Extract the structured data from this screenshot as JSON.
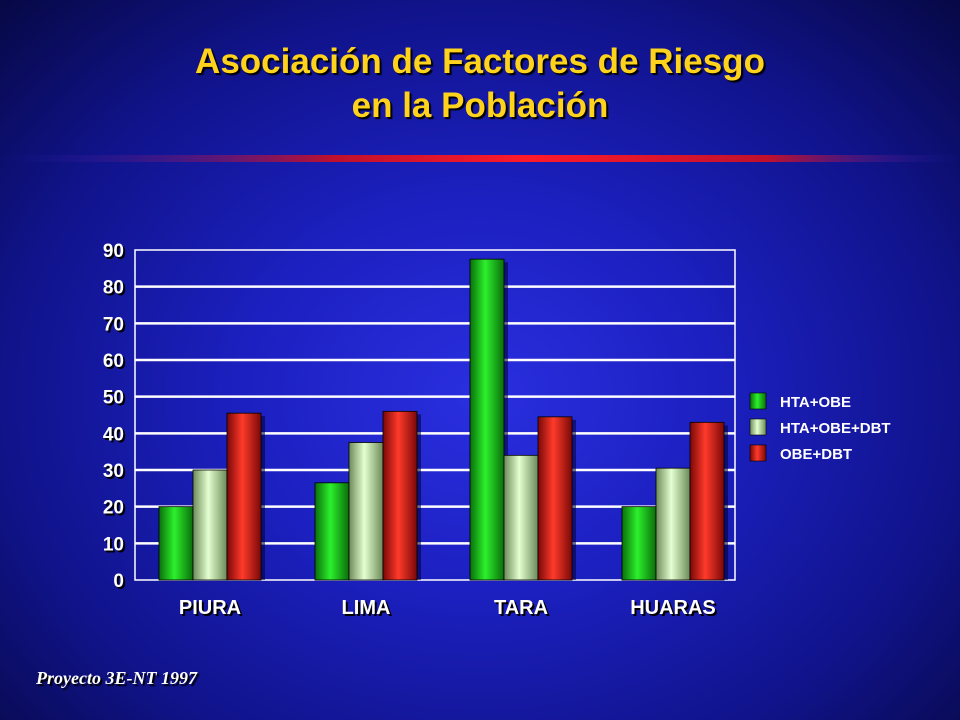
{
  "slide": {
    "title_line1": "Asociación de  Factores de Riesgo",
    "title_line2": "en la Población",
    "source": "Proyecto 3E-NT 1997"
  },
  "colors": {
    "title": "#ffd21c",
    "background": "#1c20c0",
    "divider": "#e0102a"
  },
  "chart_data": {
    "type": "bar",
    "categories": [
      "PIURA",
      "LIMA",
      "TARA",
      "HUARAS"
    ],
    "series": [
      {
        "name": "HTA+OBE",
        "color": "#18c818",
        "values": [
          20,
          26.5,
          87.5,
          20
        ]
      },
      {
        "name": "HTA+OBE+DBT",
        "color": "#b8dca0",
        "values": [
          30,
          37.5,
          34,
          30.5
        ]
      },
      {
        "name": "OBE+DBT",
        "color": "#e01010",
        "values": [
          45.5,
          46,
          44.5,
          43
        ]
      }
    ],
    "ylim": [
      0,
      90
    ],
    "yticks": [
      0,
      10,
      20,
      30,
      40,
      50,
      60,
      70,
      80,
      90
    ],
    "grid": true,
    "legend": "right"
  }
}
